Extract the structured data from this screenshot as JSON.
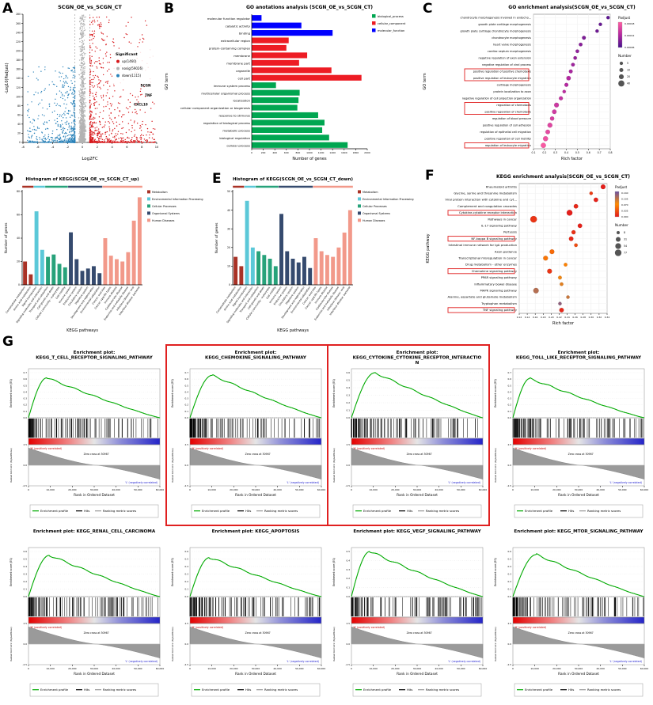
{
  "figure": {
    "panel_letters": [
      "A",
      "B",
      "C",
      "D",
      "E",
      "F",
      "G"
    ]
  },
  "colors": {
    "up": "#d7191c",
    "nosig": "#b3b3b3",
    "down": "#2b83ba",
    "go_groups": {
      "biological_process": "#00a651",
      "cellular_component": "#ed1c24",
      "molecular_function": "#0000ff"
    },
    "kegg_groups": {
      "Metabolism": "#a93226",
      "Environmental Information Processing": "#5bc8d8",
      "Cellular Processes": "#27a27a",
      "Organismal Systems": "#354a6e",
      "Human Diseases": "#f2998a"
    },
    "gsea": {
      "profile": "#00aa00",
      "hits": "#000000",
      "metric": "#999999",
      "highlight": "#e02020"
    }
  },
  "chart_data": [
    {
      "panel": "A",
      "type": "volcano",
      "title": "SCGN_OE_vs_SCGN_CT",
      "xlabel": "Log2FC",
      "ylabel": "-Log10(Padjust)",
      "xlim": [
        -8,
        10
      ],
      "ylim": [
        0,
        280
      ],
      "xticks": [
        -8,
        -6,
        -4,
        -2,
        0,
        2,
        4,
        6,
        8,
        10
      ],
      "ytick_step": 20,
      "threshold_lines_x": [
        -1,
        1
      ],
      "legend_title": "Significant",
      "legend": [
        {
          "label": "up(1460)",
          "key": "up"
        },
        {
          "label": "nosig(59026)",
          "key": "nosig"
        },
        {
          "label": "down(1115)",
          "key": "down"
        }
      ],
      "gene_labels": [
        {
          "gene": "SCGN",
          "x": 9.2,
          "y": 122
        },
        {
          "gene": "TNF",
          "x": 9.4,
          "y": 100
        },
        {
          "gene": "CXCL10",
          "x": 8.8,
          "y": 80
        }
      ]
    },
    {
      "panel": "B",
      "type": "hbar",
      "title": "GO anotations analysis (SCGN_OE_vs_SCGN_CT)",
      "xlabel": "Number of genes",
      "ylabel": "GO term",
      "xlim": [
        0,
        2000
      ],
      "xticks": [
        0,
        200,
        400,
        600,
        800,
        1000,
        1200,
        1400,
        1600,
        1800,
        2000
      ],
      "legend": [
        "biological_process",
        "cellular_component",
        "molecular_function"
      ],
      "bars": [
        {
          "term": "molecular function regulator",
          "value": 170,
          "group": "molecular_function"
        },
        {
          "term": "catalytic activity",
          "value": 860,
          "group": "molecular_function"
        },
        {
          "term": "binding",
          "value": 1400,
          "group": "molecular_function"
        },
        {
          "term": "extracellular region",
          "value": 640,
          "group": "cellular_component"
        },
        {
          "term": "protein-containing complex",
          "value": 600,
          "group": "cellular_component"
        },
        {
          "term": "membrane",
          "value": 960,
          "group": "cellular_component"
        },
        {
          "term": "membrane part",
          "value": 820,
          "group": "cellular_component"
        },
        {
          "term": "organelle",
          "value": 1380,
          "group": "cellular_component"
        },
        {
          "term": "cell part",
          "value": 1900,
          "group": "cellular_component"
        },
        {
          "term": "immune system process",
          "value": 420,
          "group": "biological_process"
        },
        {
          "term": "multicellular organismal process",
          "value": 830,
          "group": "biological_process"
        },
        {
          "term": "localization",
          "value": 810,
          "group": "biological_process"
        },
        {
          "term": "cellular component organization or biogenesis",
          "value": 790,
          "group": "biological_process"
        },
        {
          "term": "response to stimulus",
          "value": 1150,
          "group": "biological_process"
        },
        {
          "term": "regulation of biological process",
          "value": 1260,
          "group": "biological_process"
        },
        {
          "term": "metabolic process",
          "value": 1220,
          "group": "biological_process"
        },
        {
          "term": "biological regulation",
          "value": 1340,
          "group": "biological_process"
        },
        {
          "term": "cellular process",
          "value": 1660,
          "group": "biological_process"
        }
      ]
    },
    {
      "panel": "C",
      "type": "dotplot",
      "title": "GO enrichment analysis(SCGN_OE_vs_SCGN_CT)",
      "xlabel": "Rich factor",
      "ylabel": "GO term",
      "xlim": [
        0.1,
        0.8
      ],
      "xtick_labels": [
        "0.1",
        "0.2",
        "0.3",
        "0.4",
        "0.5",
        "0.6",
        "0.7",
        "0.8"
      ],
      "color_legend": {
        "title": "Padjust",
        "labels": [
          "0.00018",
          "0.00012",
          "0.00006"
        ],
        "stops": [
          "#46128c",
          "#b428a0",
          "#ff5fa2"
        ]
      },
      "size_legend": {
        "title": "Number",
        "items": [
          5,
          10,
          20,
          40
        ]
      },
      "rows": [
        {
          "term": "chondrocyte morphogenesis involved in endocho...",
          "rich": 0.78,
          "number": 5,
          "p": 0.1
        },
        {
          "term": "growth plate cartilage morphogenesis",
          "rich": 0.71,
          "number": 5,
          "p": 0.15
        },
        {
          "term": "growth plate cartilage chondrocyte morphogenesis",
          "rich": 0.68,
          "number": 5,
          "p": 0.18
        },
        {
          "term": "chondrocyte morphogenesis",
          "rich": 0.56,
          "number": 8,
          "p": 0.25
        },
        {
          "term": "heart valve morphogenesis",
          "rich": 0.53,
          "number": 7,
          "p": 0.3
        },
        {
          "term": "cardiac septum morphogenesis",
          "rich": 0.5,
          "number": 6,
          "p": 0.33
        },
        {
          "term": "negative regulation of axon extension",
          "rich": 0.48,
          "number": 6,
          "p": 0.36
        },
        {
          "term": "negative regulation of viral process",
          "rich": 0.46,
          "number": 7,
          "p": 0.4
        },
        {
          "term": "positive regulation of positive chemotaxis",
          "rich": 0.44,
          "number": 8,
          "p": 0.45
        },
        {
          "term": "positive regulation of leukocyte migration",
          "rich": 0.42,
          "number": 14,
          "p": 0.5
        },
        {
          "term": "cartilage morphogenesis",
          "rich": 0.4,
          "number": 9,
          "p": 0.5
        },
        {
          "term": "protein localization to axon",
          "rich": 0.38,
          "number": 5,
          "p": 0.55
        },
        {
          "term": "negative regulation of cell projection organization",
          "rich": 0.35,
          "number": 10,
          "p": 0.6
        },
        {
          "term": "regulation of chemotaxis",
          "rich": 0.31,
          "number": 18,
          "p": 0.65
        },
        {
          "term": "positive regulation of chemotaxis",
          "rich": 0.29,
          "number": 15,
          "p": 0.68
        },
        {
          "term": "regulation of blood pressure",
          "rich": 0.27,
          "number": 12,
          "p": 0.72
        },
        {
          "term": "positive regulation of cell adhesion",
          "rich": 0.25,
          "number": 20,
          "p": 0.78
        },
        {
          "term": "regulation of epithelial cell migration",
          "rich": 0.23,
          "number": 16,
          "p": 0.82
        },
        {
          "term": "positive regulation of cell motility",
          "rich": 0.21,
          "number": 22,
          "p": 0.88
        },
        {
          "term": "regulation of leukocyte migration",
          "rich": 0.19,
          "number": 24,
          "p": 0.95
        }
      ],
      "highlight_boxes": [
        [
          9,
          10
        ],
        [
          14,
          15
        ],
        [
          20,
          20
        ]
      ]
    },
    {
      "panel": "D",
      "type": "vbar",
      "title": "Histogram of KEGG(SCGN_OE_vs_SCGN_CT_up)",
      "xlabel": "KEGG pathways",
      "ylabel": "Number of genes",
      "ylim": [
        0,
        80
      ],
      "yticks": [
        0,
        20,
        40,
        60,
        80
      ],
      "groups": [
        {
          "name": "Metabolism",
          "count": 2
        },
        {
          "name": "Environmental Information Processing",
          "count": 2
        },
        {
          "name": "Cellular Processes",
          "count": 4
        },
        {
          "name": "Organismal Systems",
          "count": 6
        },
        {
          "name": "Human Diseases",
          "count": 7
        }
      ],
      "categories": [
        "Carbohydrate metabolism",
        "Amino acid metabolism",
        "Signal transduction",
        "Signaling molecules and interaction",
        "Transport and catabolism",
        "Cell growth and death",
        "Cellular community - eukaryotes",
        "Cell motility",
        "Immune system",
        "Endocrine system",
        "Circulatory system",
        "Digestive system",
        "Development and regeneration",
        "Environmental adaptation",
        "Cancer: overview",
        "Cancer: specific types",
        "Immune disease",
        "Cardiovascular disease",
        "Endocrine and metabolic disease",
        "Infectious disease: viral",
        "Infectious disease: bacterial"
      ],
      "values": [
        20,
        9,
        63,
        30,
        24,
        26,
        18,
        15,
        45,
        22,
        12,
        14,
        16,
        10,
        40,
        25,
        22,
        20,
        28,
        55,
        75
      ]
    },
    {
      "panel": "E",
      "type": "vbar",
      "title": "Histogram of KEGG(SCGN_OE_vs_SCGN_CT_down)",
      "xlabel": "KEGG pathways",
      "ylabel": "Number of genes",
      "ylim": [
        0,
        50
      ],
      "yticks": [
        0,
        10,
        20,
        30,
        40,
        50
      ],
      "groups": [
        {
          "name": "Metabolism",
          "count": 2
        },
        {
          "name": "Environmental Information Processing",
          "count": 2
        },
        {
          "name": "Cellular Processes",
          "count": 4
        },
        {
          "name": "Organismal Systems",
          "count": 6
        },
        {
          "name": "Human Diseases",
          "count": 7
        }
      ],
      "categories": [
        "Carbohydrate metabolism",
        "Amino acid metabolism",
        "Signal transduction",
        "Signaling molecules and interaction",
        "Transport and catabolism",
        "Cell growth and death",
        "Cellular community - eukaryotes",
        "Cell motility",
        "Immune system",
        "Endocrine system",
        "Circulatory system",
        "Digestive system",
        "Development and regeneration",
        "Environmental adaptation",
        "Cancer: overview",
        "Cancer: specific types",
        "Immune disease",
        "Cardiovascular disease",
        "Endocrine and metabolic disease",
        "Infectious disease: viral",
        "Infectious disease: bacterial"
      ],
      "values": [
        15,
        10,
        45,
        20,
        18,
        16,
        14,
        10,
        38,
        18,
        14,
        12,
        15,
        9,
        25,
        18,
        16,
        15,
        20,
        28,
        40
      ]
    },
    {
      "panel": "F",
      "type": "dotplot",
      "title": "KEGG enrichment analysis(SCGN_OE_vs_SCGN_CT)",
      "xlabel": "Rich factor",
      "ylabel": "KEGG pathway",
      "xlim": [
        0.12,
        0.34
      ],
      "xtick_labels": [
        "0.12",
        "0.14",
        "0.16",
        "0.18",
        "0.20",
        "0.22",
        "0.24",
        "0.26",
        "0.28",
        "0.30",
        "0.32",
        "0.34"
      ],
      "color_legend": {
        "title": "Padjust",
        "labels": [
          "0.140",
          "0.105",
          "0.070",
          "0.035",
          "0.000"
        ],
        "stops": [
          "#e31a1c",
          "#ff8c00",
          "#6a51a3"
        ]
      },
      "size_legend": {
        "title": "Number",
        "items": [
          8,
          31,
          54,
          77
        ]
      },
      "rows": [
        {
          "term": "Rheumatoid arthritis",
          "rich": 0.33,
          "number": 30,
          "p": 0.02
        },
        {
          "term": "Glycine, serine and threonine metabolism",
          "rich": 0.3,
          "number": 10,
          "p": 0.15
        },
        {
          "term": "Viral protein interaction with cytokine and cyt...",
          "rich": 0.312,
          "number": 25,
          "p": 0.03
        },
        {
          "term": "Complement and coagulation cascades",
          "rich": 0.262,
          "number": 25,
          "p": 0.06
        },
        {
          "term": "Cytokine-cytokine receptor interaction",
          "rich": 0.246,
          "number": 54,
          "p": 0.02
        },
        {
          "term": "Pathways in cancer",
          "rich": 0.156,
          "number": 77,
          "p": 0.12
        },
        {
          "term": "IL-17 signaling pathway",
          "rich": 0.272,
          "number": 25,
          "p": 0.03
        },
        {
          "term": "Pertussis",
          "rich": 0.256,
          "number": 20,
          "p": 0.1
        },
        {
          "term": "NF-kappa B signaling pathway",
          "rich": 0.25,
          "number": 26,
          "p": 0.06
        },
        {
          "term": "Intestinal immune network for IgA production",
          "rich": 0.262,
          "number": 12,
          "p": 0.22
        },
        {
          "term": "Axon guidance",
          "rich": 0.202,
          "number": 30,
          "p": 0.35
        },
        {
          "term": "Transcriptional misregulation in cancer",
          "rich": 0.186,
          "number": 31,
          "p": 0.4
        },
        {
          "term": "Drug metabolism - other enzymes",
          "rich": 0.236,
          "number": 12,
          "p": 0.45
        },
        {
          "term": "Chemokine signaling pathway",
          "rich": 0.196,
          "number": 31,
          "p": 0.12
        },
        {
          "term": "PPAR signaling pathway",
          "rich": 0.222,
          "number": 14,
          "p": 0.55
        },
        {
          "term": "Inflammatory bowel disease",
          "rich": 0.226,
          "number": 12,
          "p": 0.6
        },
        {
          "term": "MAPK signaling pathway",
          "rich": 0.162,
          "number": 45,
          "p": 0.75
        },
        {
          "term": "Alanine, aspartate and glutamate metabolism",
          "rich": 0.242,
          "number": 10,
          "p": 0.68
        },
        {
          "term": "Tryptophan metabolism",
          "rich": 0.222,
          "number": 10,
          "p": 0.88
        },
        {
          "term": "TNF signaling pathway",
          "rich": 0.226,
          "number": 26,
          "p": 0.06
        }
      ],
      "highlight_boxes": [
        [
          5,
          5
        ],
        [
          9,
          9
        ],
        [
          14,
          14
        ],
        [
          20,
          20
        ]
      ]
    },
    {
      "panel": "G",
      "type": "gsea",
      "shared": {
        "es_ylabel": "Enrichment score (ES)",
        "metric_ylabel": "Ranked list metric (Signal2Noise)",
        "xlabel": "Rank in Ordered Dataset",
        "pos_label": "'H' (positively correlated)",
        "zero_label": "Zero cross at 30967",
        "neg_label": "'L' (negatively correlated)",
        "legend": [
          "Enrichment profile",
          "Hits",
          "Ranking metric scores"
        ],
        "xtick_labels": [
          "0",
          "10,000",
          "20,000",
          "30,000",
          "40,000",
          "50,000",
          "60,000"
        ],
        "metric_ticks": [
          "2.5",
          "0.0",
          "-2.5"
        ],
        "zero_cross_frac": 0.516
      },
      "plots": [
        {
          "lines": [
            "Enrichment plot:",
            "KEGG_T_CELL_RECEPTOR_SIGNALING_PATHWAY"
          ],
          "es_peak": 0.62,
          "peak_x_frac": 0.14,
          "boxed": false
        },
        {
          "lines": [
            "Enrichment plot:",
            "KEGG_CHEMOKINE_SIGNALING_PATHWAY"
          ],
          "es_peak": 0.66,
          "peak_x_frac": 0.17,
          "boxed": true
        },
        {
          "lines": [
            "Enrichment plot:",
            "KEGG_CYTOKINE_CYTOKINE_RECEPTOR_INTERACTIO",
            "N"
          ],
          "es_peak": 0.6,
          "peak_x_frac": 0.18,
          "boxed": true
        },
        {
          "lines": [
            "Enrichment plot:",
            "KEGG_TOLL_LIKE_RECEPTOR_SIGNALING_PATHWAY"
          ],
          "es_peak": 0.61,
          "peak_x_frac": 0.13,
          "boxed": false
        },
        {
          "lines": [
            "Enrichment plot: KEGG_RENAL_CELL_CARCINOMA"
          ],
          "es_peak": 0.55,
          "peak_x_frac": 0.16,
          "boxed": false
        },
        {
          "lines": [
            "Enrichment plot: KEGG_APOPTOSIS"
          ],
          "es_peak": 0.52,
          "peak_x_frac": 0.15,
          "boxed": false
        },
        {
          "lines": [
            "Enrichment plot: KEGG_VEGF_SIGNALING_PATHWAY"
          ],
          "es_peak": 0.5,
          "peak_x_frac": 0.14,
          "boxed": false
        },
        {
          "lines": [
            "Enrichment plot: KEGG_MTOR_SIGNALING_PATHWAY"
          ],
          "es_peak": 0.56,
          "peak_x_frac": 0.18,
          "boxed": false
        }
      ]
    }
  ]
}
